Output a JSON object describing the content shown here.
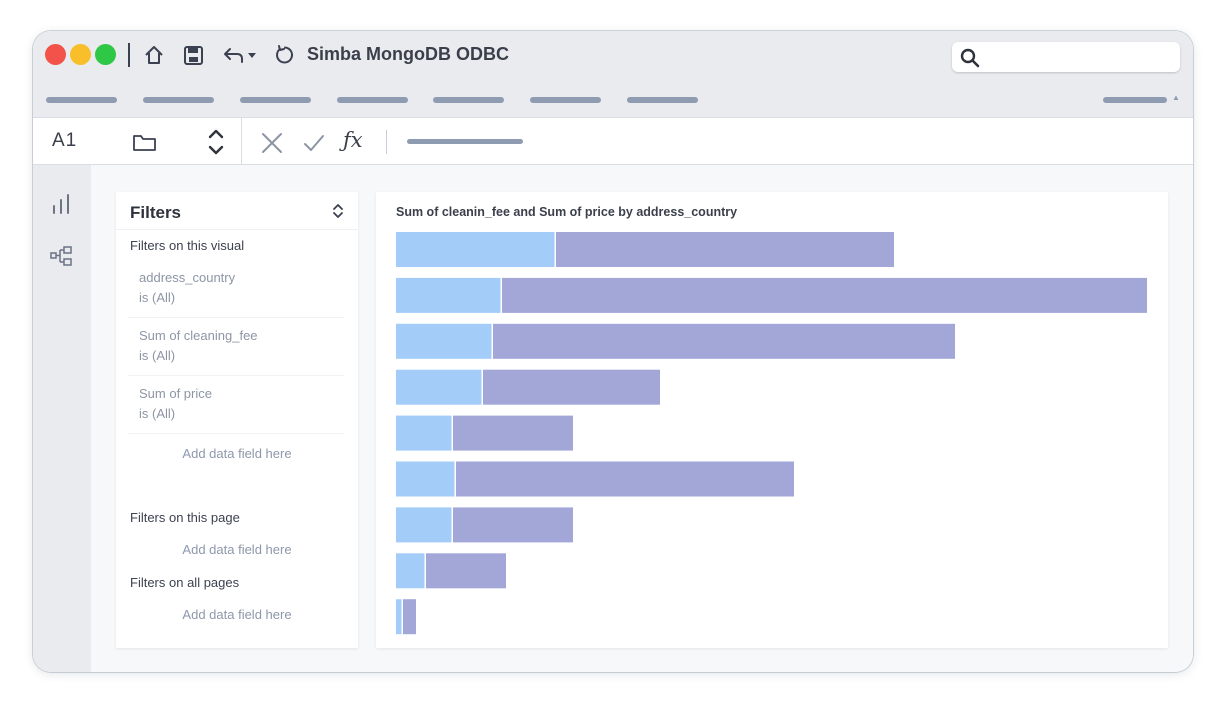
{
  "window": {
    "title": "Simba MongoDB ODBC",
    "search": {
      "placeholder": "",
      "value": ""
    },
    "menu_items_count_hint": "",
    "icons": [
      "home-icon",
      "save-icon",
      "undo-icon",
      "dropdown-caret-icon",
      "refresh-icon",
      "search-icon"
    ]
  },
  "formula_bar": {
    "cell_reference": "A1",
    "fx_label": "ƒx",
    "icons": [
      "folder-icon",
      "stepper-icon",
      "cancel-icon",
      "confirm-icon"
    ]
  },
  "left_rail": {
    "icons": [
      "bar-chart-icon",
      "hierarchy-icon"
    ]
  },
  "filters": {
    "title": "Filters",
    "on_this_visual": {
      "label": "Filters on this visual",
      "items": [
        {
          "name": "address_country",
          "value": "is (All)"
        },
        {
          "name": "Sum of cleaning_fee",
          "value": "is (All)"
        },
        {
          "name": "Sum of price",
          "value": "is (All)"
        }
      ],
      "add_label": "Add data field here"
    },
    "on_this_page": {
      "label": "Filters on this page",
      "add_label": "Add data field here"
    },
    "on_all_pages": {
      "label": "Filters on all pages",
      "add_label": "Add data field here"
    }
  },
  "chart_data": {
    "type": "bar",
    "orientation": "horizontal",
    "stacked": true,
    "title": "Sum of cleanin_fee and Sum of price by address_country",
    "xlabel": "",
    "ylabel": "",
    "categories": [
      "",
      "",
      "",
      "",
      "",
      "",
      "",
      "",
      ""
    ],
    "series": [
      {
        "values": [
          160,
          106,
          97,
          87,
          57,
          60,
          57,
          30,
          7
        ],
        "color": "#a3cdf8"
      },
      {
        "values": [
          338,
          645,
          462,
          177,
          120,
          338,
          120,
          80,
          13
        ],
        "color": "#a2a7d8"
      }
    ],
    "xlim": [
      0,
      752
    ],
    "grid": false,
    "legend": "none"
  }
}
